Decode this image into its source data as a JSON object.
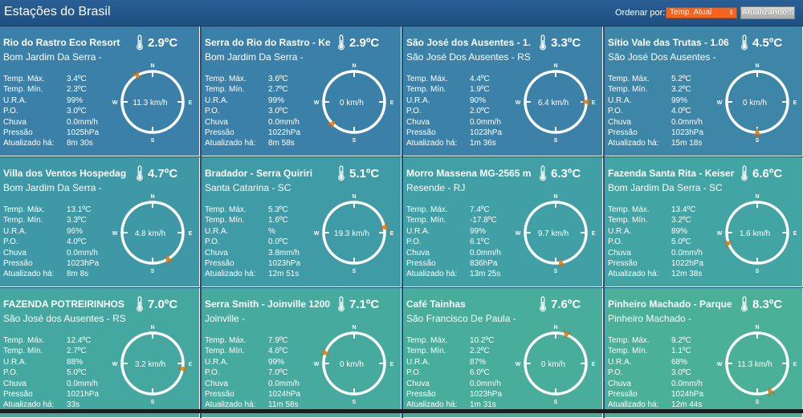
{
  "header": {
    "title": "Estações do Brasil",
    "sort_label": "Ordenar por:",
    "sort_value": "Temp. Atual",
    "refresh_label": "Atualizando..."
  },
  "labels": {
    "max": "Temp. Máx.",
    "min": "Temp. Mín.",
    "ura": "U.R.A.",
    "po": "P.O.",
    "rain": "Chuva",
    "pressure": "Pressão",
    "updated": "Atualizado há:"
  },
  "compass": {
    "n": "N",
    "s": "S",
    "e": "E",
    "w": "W"
  },
  "stations": [
    {
      "name": "Rio do Rastro Eco Resort",
      "temp": "2.9ºC",
      "location": "Bom Jardim Da Serra -",
      "max": "3.4ºC",
      "min": "2.3ºC",
      "ura": "99%",
      "po": "3.0ºC",
      "rain": "0.0mm/h",
      "pressure": "1025hPa",
      "updated": "8m 30s",
      "speed": "11.3 km/h",
      "dir": 330,
      "color": "#3b80a8"
    },
    {
      "name": "Serra do Rio do Rastro - Ke",
      "temp": "2.9ºC",
      "location": "Bom Jardim Da Serra -",
      "max": "3.6ºC",
      "min": "2.7ºC",
      "ura": "99%",
      "po": "3.0ºC",
      "rain": "0.0mm/h",
      "pressure": "1022hPa",
      "updated": "8m 58s",
      "speed": "0 km/h",
      "dir": 225,
      "color": "#3b80a8"
    },
    {
      "name": "São José dos Ausentes - 1.",
      "temp": "3.3ºC",
      "location": "São José Dos Ausentes - RS",
      "max": "4.4ºC",
      "min": "1.9ºC",
      "ura": "90%",
      "po": "2.0ºC",
      "rain": "0.0mm/h",
      "pressure": "1023hPa",
      "updated": "1m 36s",
      "speed": "6.4 km/h",
      "dir": 90,
      "color": "#3c82a8"
    },
    {
      "name": "Sítio Vale das Trutas - 1.06",
      "temp": "4.5ºC",
      "location": "São José Dos Ausentes -",
      "max": "5.2ºC",
      "min": "3.2ºC",
      "ura": "99%",
      "po": "4.0ºC",
      "rain": "0.0mm/h",
      "pressure": "1023hPa",
      "updated": "15m 18s",
      "speed": "0 km/h",
      "dir": 180,
      "color": "#3e86a8"
    },
    {
      "name": "Villa dos Ventos Hospedag",
      "temp": "4.7ºC",
      "location": "Bom Jardim Da Serra -",
      "max": "13.1ºC",
      "min": "3.3ºC",
      "ura": "96%",
      "po": "4.0ºC",
      "rain": "0.0mm/h",
      "pressure": "1023hPa",
      "updated": "8m 8s",
      "speed": "4.8 km/h",
      "dir": 150,
      "color": "#3e98a6"
    },
    {
      "name": "Bradador - Serra Quiriri",
      "temp": "5.1ºC",
      "location": "Santa Catarina - SC",
      "max": "5.3ºC",
      "min": "1.6ºC",
      "ura": "%",
      "po": "0.0ºC",
      "rain": "3.8mm/h",
      "pressure": "1023hPa",
      "updated": "12m 51s",
      "speed": "19.3 km/h",
      "dir": 80,
      "color": "#3f9ba6"
    },
    {
      "name": "Morro Massena MG-2565 m",
      "temp": "6.3ºC",
      "location": "Resende - RJ",
      "max": "7.4ºC",
      "min": "-17.8ºC",
      "ura": "99%",
      "po": "6.1ºC",
      "rain": "0.0mm/h",
      "pressure": "836hPa",
      "updated": "13m 25s",
      "speed": "9.7 km/h",
      "dir": 170,
      "color": "#40a0a5"
    },
    {
      "name": "Fazenda Santa Rita - Keiser",
      "temp": "6.6ºC",
      "location": "Bom Jardim Da Serra - SC",
      "max": "13.4ºC",
      "min": "3.2ºC",
      "ura": "89%",
      "po": "5.0ºC",
      "rain": "0.0mm/h",
      "pressure": "1022hPa",
      "updated": "12m 38s",
      "speed": "1.6 km/h",
      "dir": 250,
      "color": "#42a4a3"
    },
    {
      "name": "FAZENDA POTREIRINHOS",
      "temp": "7.0ºC",
      "location": "São José dos Ausentes - RS",
      "max": "12.4ºC",
      "min": "2.7ºC",
      "ura": "88%",
      "po": "5.0ºC",
      "rain": "0.0mm/h",
      "pressure": "1021hPa",
      "updated": "33s",
      "speed": "3.2 km/h",
      "dir": 100,
      "color": "#44a8a0"
    },
    {
      "name": "Serra Smith - Joinville 1200",
      "temp": "7.1ºC",
      "location": "Joinville -",
      "max": "7.9ºC",
      "min": "4.6ºC",
      "ura": "99%",
      "po": "7.0ºC",
      "rain": "0.0mm/h",
      "pressure": "1024hPa",
      "updated": "11m 58s",
      "speed": "0 km/h",
      "dir": 290,
      "color": "#46aa9e"
    },
    {
      "name": "Café Tainhas",
      "temp": "7.6ºC",
      "location": "São Francisco De Paula -",
      "max": "10.2ºC",
      "min": "2.2ºC",
      "ura": "87%",
      "po": "6.0ºC",
      "rain": "0.0mm/h",
      "pressure": "1023hPa",
      "updated": "1m 31s",
      "speed": "0 km/h",
      "dir": 20,
      "color": "#48ad9a"
    },
    {
      "name": "Pinheiro Machado - Parque",
      "temp": "8.3ºC",
      "location": "Pinheiro Machado -",
      "max": "9.2ºC",
      "min": "1.1ºC",
      "ura": "68%",
      "po": "3.0ºC",
      "rain": "0.0mm/h",
      "pressure": "1024hPa",
      "updated": "12m 44s",
      "speed": "11.3 km/h",
      "dir": 155,
      "color": "#4ab098"
    }
  ]
}
